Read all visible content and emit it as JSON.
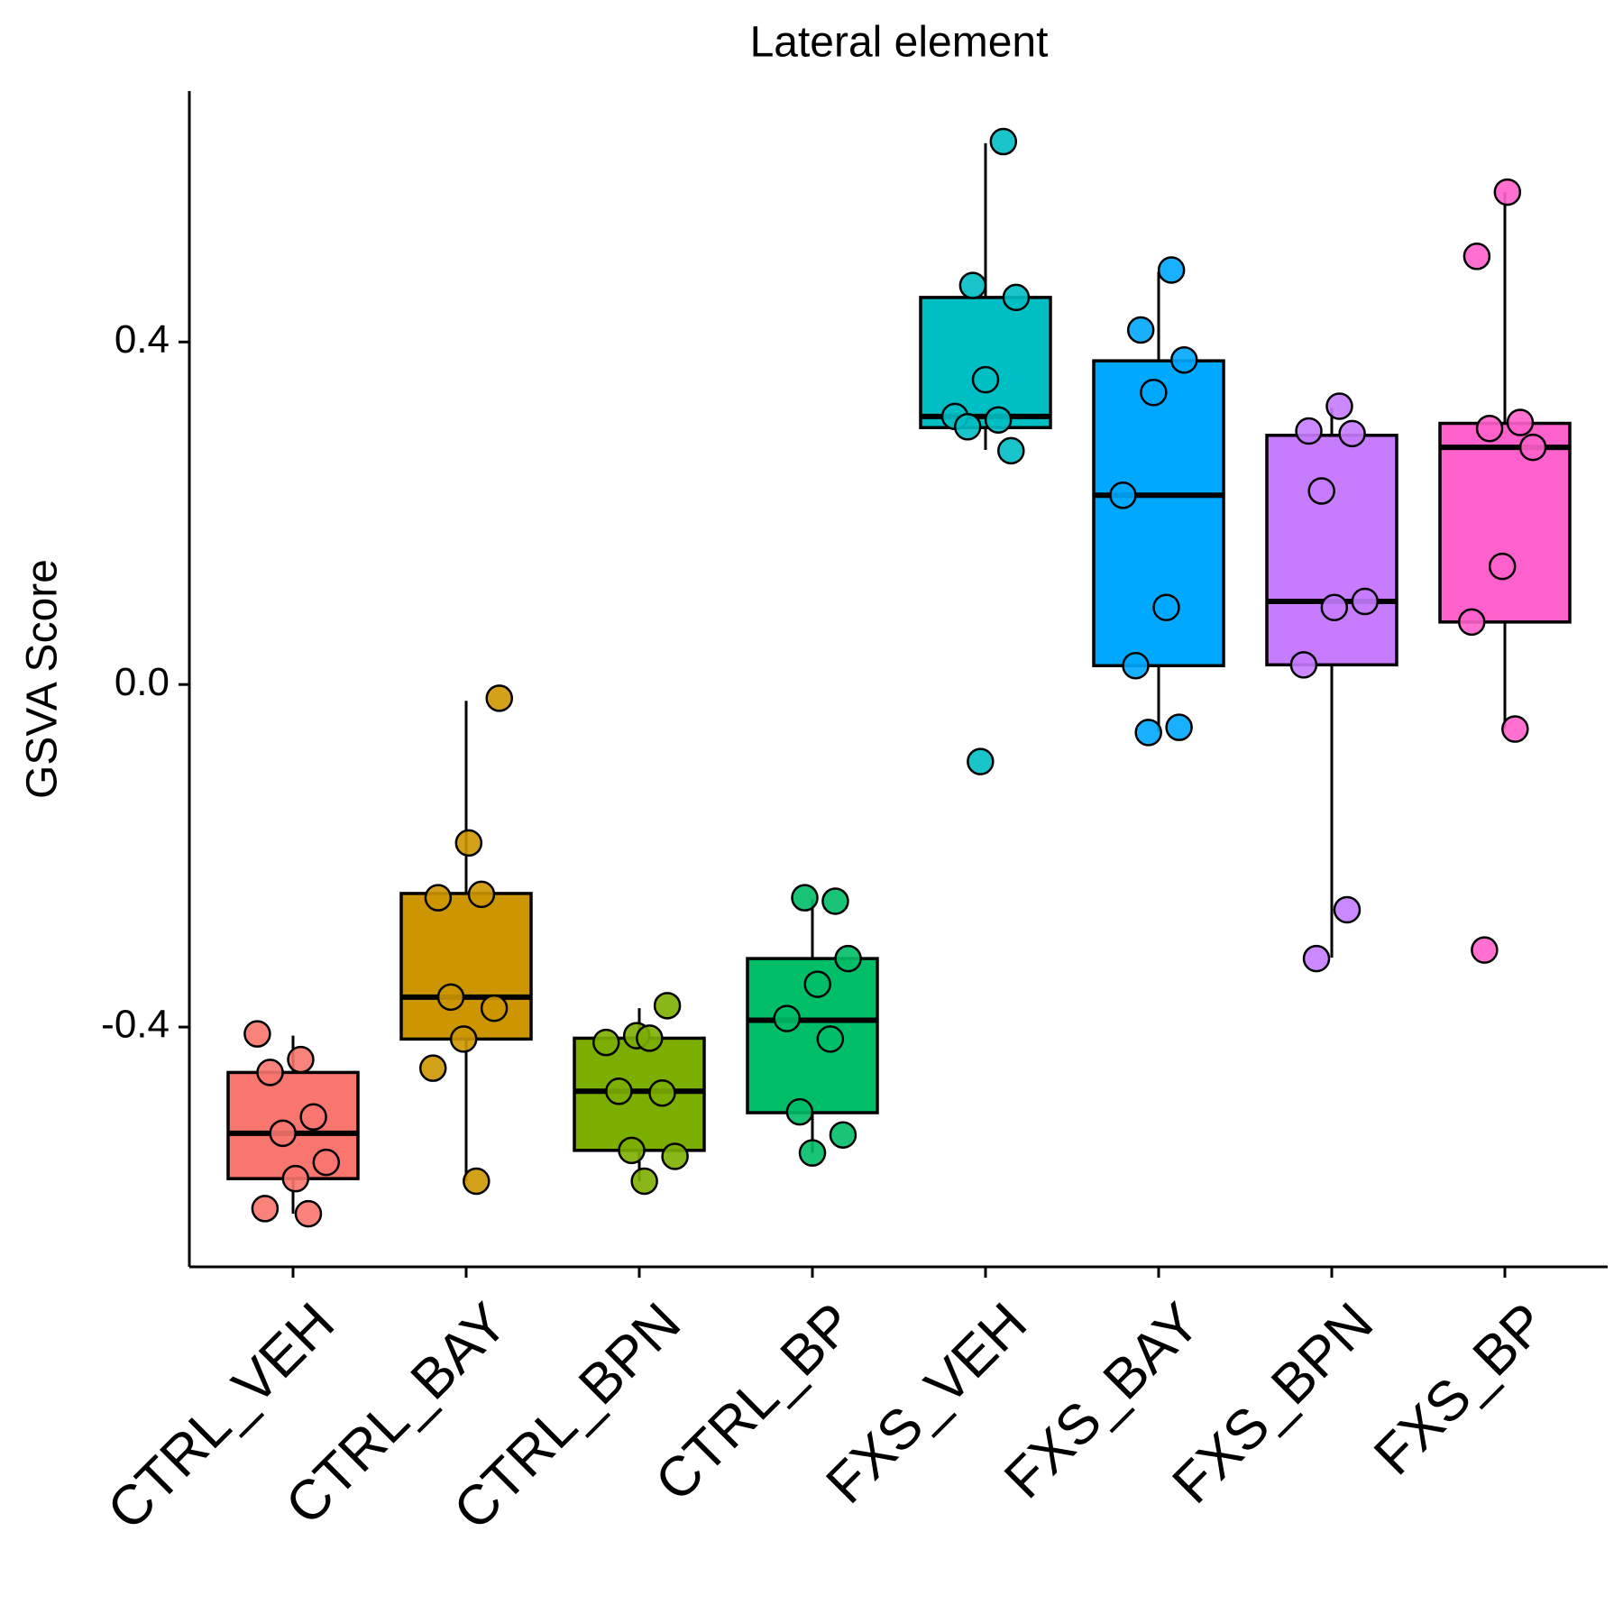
{
  "chart_data": {
    "type": "box",
    "title": "Lateral element",
    "y_label": "GSVA Score",
    "categories": [
      "CTRL_VEH",
      "CTRL_BAY",
      "CTRL_BPN",
      "CTRL_BP",
      "FXS_VEH",
      "FXS_BAY",
      "FXS_BPN",
      "FXS_BP"
    ],
    "boxes": [
      {
        "color": "#F8766D",
        "min": -0.618,
        "q1": -0.577,
        "median": -0.524,
        "q3": -0.453,
        "max": -0.41,
        "points": [
          -0.408,
          -0.438,
          -0.453,
          -0.505,
          -0.524,
          -0.558,
          -0.577,
          -0.612,
          -0.618
        ]
      },
      {
        "color": "#CD9600",
        "min": -0.58,
        "q1": -0.414,
        "median": -0.365,
        "q3": -0.244,
        "max": -0.019,
        "points": [
          -0.016,
          -0.185,
          -0.249,
          -0.245,
          -0.365,
          -0.378,
          -0.414,
          -0.448,
          -0.58
        ]
      },
      {
        "color": "#7CAE00",
        "min": -0.58,
        "q1": -0.544,
        "median": -0.475,
        "q3": -0.413,
        "max": -0.378,
        "points": [
          -0.375,
          -0.41,
          -0.418,
          -0.413,
          -0.475,
          -0.477,
          -0.544,
          -0.551,
          -0.58
        ]
      },
      {
        "color": "#00BE67",
        "min": -0.547,
        "q1": -0.5,
        "median": -0.392,
        "q3": -0.32,
        "max": -0.251,
        "points": [
          -0.253,
          -0.249,
          -0.32,
          -0.35,
          -0.39,
          -0.414,
          -0.499,
          -0.526,
          -0.547
        ]
      },
      {
        "color": "#00BFC4",
        "min": 0.274,
        "q1": 0.3,
        "median": 0.313,
        "q3": 0.452,
        "max": 0.632,
        "points": [
          0.634,
          0.466,
          0.452,
          0.356,
          0.313,
          0.309,
          0.301,
          0.273,
          -0.09
        ]
      },
      {
        "color": "#00A9FF",
        "min": -0.055,
        "q1": 0.022,
        "median": 0.221,
        "q3": 0.378,
        "max": 0.482,
        "points": [
          0.484,
          0.414,
          0.379,
          0.341,
          0.221,
          0.09,
          0.022,
          -0.05,
          -0.056
        ]
      },
      {
        "color": "#C77CFF",
        "min": -0.319,
        "q1": 0.023,
        "median": 0.097,
        "q3": 0.291,
        "max": 0.323,
        "points": [
          0.325,
          0.296,
          0.293,
          0.226,
          0.097,
          0.09,
          0.023,
          -0.263,
          -0.32
        ]
      },
      {
        "color": "#FF61CC",
        "min": -0.051,
        "q1": 0.073,
        "median": 0.277,
        "q3": 0.305,
        "max": 0.575,
        "points": [
          0.575,
          0.5,
          0.306,
          0.299,
          0.277,
          0.138,
          0.073,
          -0.052,
          -0.31
        ]
      }
    ],
    "ylim": [
      -0.68,
      0.693
    ],
    "yticks": [
      -0.4,
      {
        "value": 0,
        "label": "0.0"
      },
      0.4
    ]
  }
}
